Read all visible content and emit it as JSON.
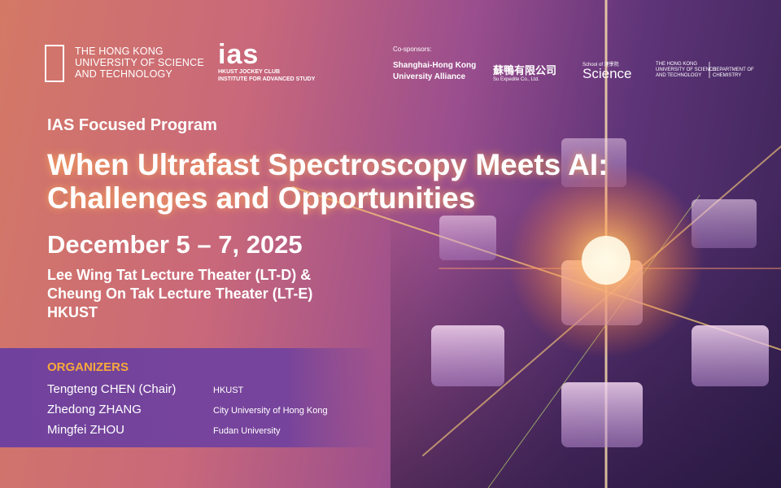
{
  "logos": {
    "hkust": [
      "THE HONG KONG",
      "UNIVERSITY OF SCIENCE",
      "AND TECHNOLOGY"
    ],
    "ias": {
      "mark": "ias",
      "lines": [
        "HKUST JOCKEY CLUB",
        "INSTITUTE FOR ADVANCED STUDY"
      ]
    }
  },
  "cosponsors": {
    "label": "Co-sponsors:",
    "items": [
      [
        "Shanghai-Hong Kong",
        "University Alliance"
      ],
      [
        "蘇鴨有限公司",
        "Su Expedite Co., Ltd."
      ],
      [
        "School of 理學院",
        "Science"
      ],
      [
        "THE HONG KONG",
        "UNIVERSITY OF SCIENCE",
        "AND TECHNOLOGY",
        "DEPARTMENT OF CHEMISTRY"
      ]
    ]
  },
  "program": {
    "label": "IAS Focused Program",
    "title": [
      "When Ultrafast Spectroscopy Meets AI:",
      "Challenges and Opportunities"
    ],
    "date": "December 5 – 7, 2025",
    "venue": [
      "Lee Wing Tat Lecture Theater (LT-D) &",
      "Cheung On Tak Lecture Theater (LT-E)",
      "HKUST"
    ]
  },
  "organizers": {
    "heading": "ORGANIZERS",
    "rows": [
      [
        "Tengteng CHEN (Chair)",
        "HKUST"
      ],
      [
        "Zhedong ZHANG",
        "City University of Hong Kong"
      ],
      [
        "Mingfei ZHOU",
        "Fudan University"
      ]
    ]
  }
}
